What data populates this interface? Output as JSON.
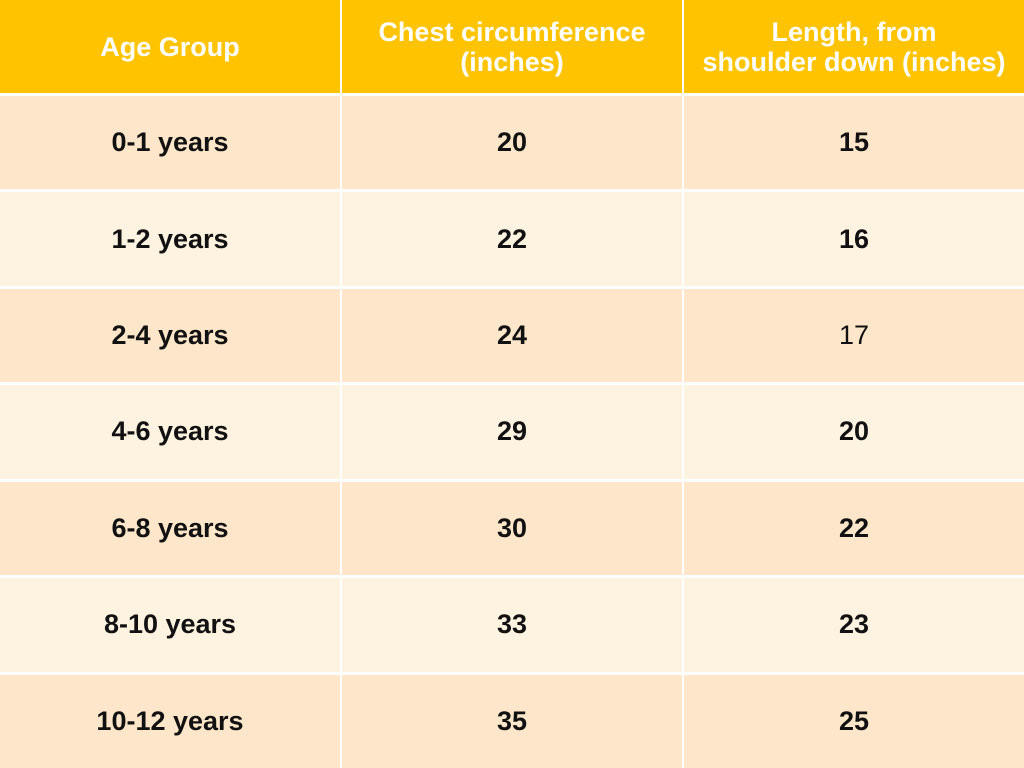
{
  "table": {
    "headers": [
      [
        "Age Group"
      ],
      [
        "Chest circumference",
        "(inches)"
      ],
      [
        "Length, from",
        "shoulder down (inches)"
      ]
    ],
    "rows": [
      [
        "0-1 years",
        20,
        15
      ],
      [
        "1-2 years",
        22,
        16
      ],
      [
        "2-4 years",
        24,
        17
      ],
      [
        "4-6 years",
        29,
        20
      ],
      [
        "6-8 years",
        30,
        22
      ],
      [
        "8-10 years",
        33,
        23
      ],
      [
        "10-12 years",
        35,
        25
      ]
    ]
  }
}
